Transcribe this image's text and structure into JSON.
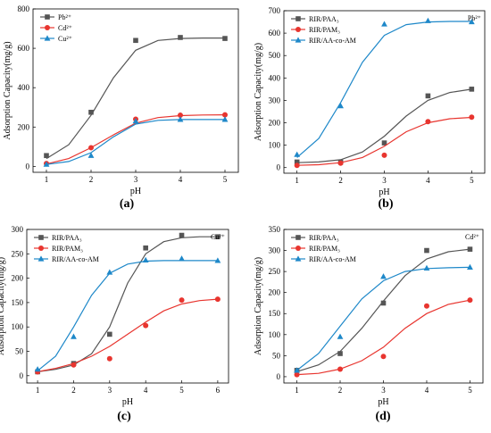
{
  "chart_data": [
    {
      "panel_label": "(a)",
      "type": "line",
      "xlabel": "pH",
      "ylabel": "Adsorption Capacity(mg/g)",
      "xticks": [
        1,
        2,
        3,
        4,
        5
      ],
      "yticks": [
        0,
        200,
        400,
        600,
        800
      ],
      "xlim": [
        0.7,
        5.3
      ],
      "ylim": [
        -30,
        800
      ],
      "legend_position": "top-left",
      "corner_label": "",
      "series": [
        {
          "name": "Pb²⁺",
          "color": "#555555",
          "marker": "square",
          "x": [
            1,
            2,
            3,
            4,
            5
          ],
          "y": [
            55,
            275,
            640,
            655,
            650
          ],
          "fit": [
            [
              1,
              40
            ],
            [
              1.5,
              110
            ],
            [
              2,
              260
            ],
            [
              2.5,
              450
            ],
            [
              3,
              590
            ],
            [
              3.5,
              640
            ],
            [
              4,
              650
            ],
            [
              4.5,
              652
            ],
            [
              5,
              652
            ]
          ]
        },
        {
          "name": "Cd²⁺",
          "color": "#e8352f",
          "marker": "circle",
          "x": [
            1,
            2,
            3,
            4,
            5
          ],
          "y": [
            15,
            95,
            240,
            260,
            262
          ],
          "fit": [
            [
              1,
              12
            ],
            [
              1.5,
              40
            ],
            [
              2,
              95
            ],
            [
              2.5,
              160
            ],
            [
              3,
              220
            ],
            [
              3.5,
              248
            ],
            [
              4,
              258
            ],
            [
              4.5,
              261
            ],
            [
              5,
              262
            ]
          ]
        },
        {
          "name": "Cu²⁺",
          "color": "#1e88c9",
          "marker": "triangle",
          "x": [
            1,
            2,
            3,
            4,
            5
          ],
          "y": [
            10,
            55,
            230,
            238,
            238
          ],
          "fit": [
            [
              1,
              10
            ],
            [
              1.5,
              25
            ],
            [
              2,
              70
            ],
            [
              2.5,
              150
            ],
            [
              3,
              215
            ],
            [
              3.5,
              234
            ],
            [
              4,
              238
            ],
            [
              4.5,
              238
            ],
            [
              5,
              238
            ]
          ]
        }
      ]
    },
    {
      "panel_label": "(b)",
      "type": "line",
      "xlabel": "pH",
      "ylabel": "Adsorption Capacity(mg/g)",
      "xticks": [
        1,
        2,
        3,
        4,
        5
      ],
      "yticks": [
        0,
        100,
        200,
        300,
        400,
        500,
        600,
        700
      ],
      "xlim": [
        0.7,
        5.3
      ],
      "ylim": [
        -25,
        700
      ],
      "legend_position": "top-left",
      "corner_label": "Pb²⁺",
      "series": [
        {
          "name": "RIR/PAA₃",
          "color": "#555555",
          "marker": "square",
          "x": [
            1,
            2,
            3,
            4,
            5
          ],
          "y": [
            25,
            25,
            110,
            320,
            350
          ],
          "fit": [
            [
              1,
              22
            ],
            [
              1.5,
              25
            ],
            [
              2,
              35
            ],
            [
              2.5,
              70
            ],
            [
              3,
              140
            ],
            [
              3.5,
              230
            ],
            [
              4,
              300
            ],
            [
              4.5,
              335
            ],
            [
              5,
              350
            ]
          ]
        },
        {
          "name": "RIR/PAM₃",
          "color": "#e8352f",
          "marker": "circle",
          "x": [
            1,
            2,
            3,
            4,
            5
          ],
          "y": [
            10,
            20,
            55,
            205,
            225
          ],
          "fit": [
            [
              1,
              10
            ],
            [
              1.5,
              13
            ],
            [
              2,
              22
            ],
            [
              2.5,
              45
            ],
            [
              3,
              95
            ],
            [
              3.5,
              160
            ],
            [
              4,
              200
            ],
            [
              4.5,
              218
            ],
            [
              5,
              224
            ]
          ]
        },
        {
          "name": "RIR/AA-co-AM",
          "color": "#1e88c9",
          "marker": "triangle",
          "x": [
            1,
            2,
            3,
            4,
            5
          ],
          "y": [
            58,
            275,
            640,
            655,
            650
          ],
          "fit": [
            [
              1,
              45
            ],
            [
              1.5,
              130
            ],
            [
              2,
              290
            ],
            [
              2.5,
              470
            ],
            [
              3,
              590
            ],
            [
              3.5,
              638
            ],
            [
              4,
              650
            ],
            [
              4.5,
              652
            ],
            [
              5,
              652
            ]
          ]
        }
      ]
    },
    {
      "panel_label": "(c)",
      "type": "line",
      "xlabel": "pH",
      "ylabel": "Adsorption Capacity(mg/g)",
      "xticks": [
        1,
        2,
        3,
        4,
        5,
        6
      ],
      "yticks": [
        0,
        50,
        100,
        150,
        200,
        250,
        300
      ],
      "xlim": [
        0.7,
        6.3
      ],
      "ylim": [
        -15,
        300
      ],
      "legend_position": "top-left",
      "corner_label": "Cu²⁺",
      "series": [
        {
          "name": "RIR/PAA₃",
          "color": "#555555",
          "marker": "square",
          "x": [
            1,
            2,
            3,
            4,
            5,
            6
          ],
          "y": [
            8,
            25,
            85,
            262,
            288,
            285
          ],
          "fit": [
            [
              1,
              8
            ],
            [
              1.5,
              13
            ],
            [
              2,
              22
            ],
            [
              2.5,
              45
            ],
            [
              3,
              100
            ],
            [
              3.5,
              190
            ],
            [
              4,
              250
            ],
            [
              4.5,
              275
            ],
            [
              5,
              283
            ],
            [
              5.5,
              285
            ],
            [
              6,
              285
            ]
          ]
        },
        {
          "name": "RIR/PAM₃",
          "color": "#e8352f",
          "marker": "circle",
          "x": [
            1,
            2,
            3,
            4,
            5,
            6
          ],
          "y": [
            8,
            22,
            35,
            103,
            155,
            157
          ],
          "fit": [
            [
              1,
              8
            ],
            [
              1.5,
              15
            ],
            [
              2,
              25
            ],
            [
              2.5,
              40
            ],
            [
              3,
              60
            ],
            [
              3.5,
              85
            ],
            [
              4,
              110
            ],
            [
              4.5,
              133
            ],
            [
              5,
              147
            ],
            [
              5.5,
              154
            ],
            [
              6,
              157
            ]
          ]
        },
        {
          "name": "RIR/AA-co-AM",
          "color": "#1e88c9",
          "marker": "triangle",
          "x": [
            1,
            2,
            3,
            4,
            5,
            6
          ],
          "y": [
            13,
            80,
            212,
            237,
            240,
            236
          ],
          "fit": [
            [
              1,
              10
            ],
            [
              1.5,
              40
            ],
            [
              2,
              100
            ],
            [
              2.5,
              165
            ],
            [
              3,
              210
            ],
            [
              3.5,
              229
            ],
            [
              4,
              235
            ],
            [
              4.5,
              236
            ],
            [
              5,
              236
            ],
            [
              5.5,
              236
            ],
            [
              6,
              236
            ]
          ]
        }
      ]
    },
    {
      "panel_label": "(d)",
      "type": "line",
      "xlabel": "pH",
      "ylabel": "Adsorption Capacity(mg/g)",
      "xticks": [
        1,
        2,
        3,
        4,
        5
      ],
      "yticks": [
        0,
        50,
        100,
        150,
        200,
        250,
        300,
        350
      ],
      "xlim": [
        0.7,
        5.3
      ],
      "ylim": [
        -15,
        350
      ],
      "legend_position": "top-left",
      "corner_label": "Cd²⁺",
      "series": [
        {
          "name": "RIR/PAA₃",
          "color": "#555555",
          "marker": "square",
          "x": [
            1,
            2,
            3,
            4,
            5
          ],
          "y": [
            15,
            55,
            175,
            300,
            303
          ],
          "fit": [
            [
              1,
              12
            ],
            [
              1.5,
              28
            ],
            [
              2,
              60
            ],
            [
              2.5,
              115
            ],
            [
              3,
              180
            ],
            [
              3.5,
              240
            ],
            [
              4,
              280
            ],
            [
              4.5,
              297
            ],
            [
              5,
              303
            ]
          ]
        },
        {
          "name": "RIR/PAM₃",
          "color": "#e8352f",
          "marker": "circle",
          "x": [
            1,
            2,
            3,
            4,
            5
          ],
          "y": [
            5,
            18,
            48,
            168,
            182
          ],
          "fit": [
            [
              1,
              5
            ],
            [
              1.5,
              8
            ],
            [
              2,
              18
            ],
            [
              2.5,
              38
            ],
            [
              3,
              70
            ],
            [
              3.5,
              115
            ],
            [
              4,
              150
            ],
            [
              4.5,
              172
            ],
            [
              5,
              182
            ]
          ]
        },
        {
          "name": "RIR/AA-co-AM",
          "color": "#1e88c9",
          "marker": "triangle",
          "x": [
            1,
            2,
            3,
            4,
            5
          ],
          "y": [
            15,
            95,
            238,
            258,
            260
          ],
          "fit": [
            [
              1,
              15
            ],
            [
              1.5,
              55
            ],
            [
              2,
              120
            ],
            [
              2.5,
              185
            ],
            [
              3,
              228
            ],
            [
              3.5,
              250
            ],
            [
              4,
              257
            ],
            [
              4.5,
              259
            ],
            [
              5,
              260
            ]
          ]
        }
      ]
    }
  ]
}
